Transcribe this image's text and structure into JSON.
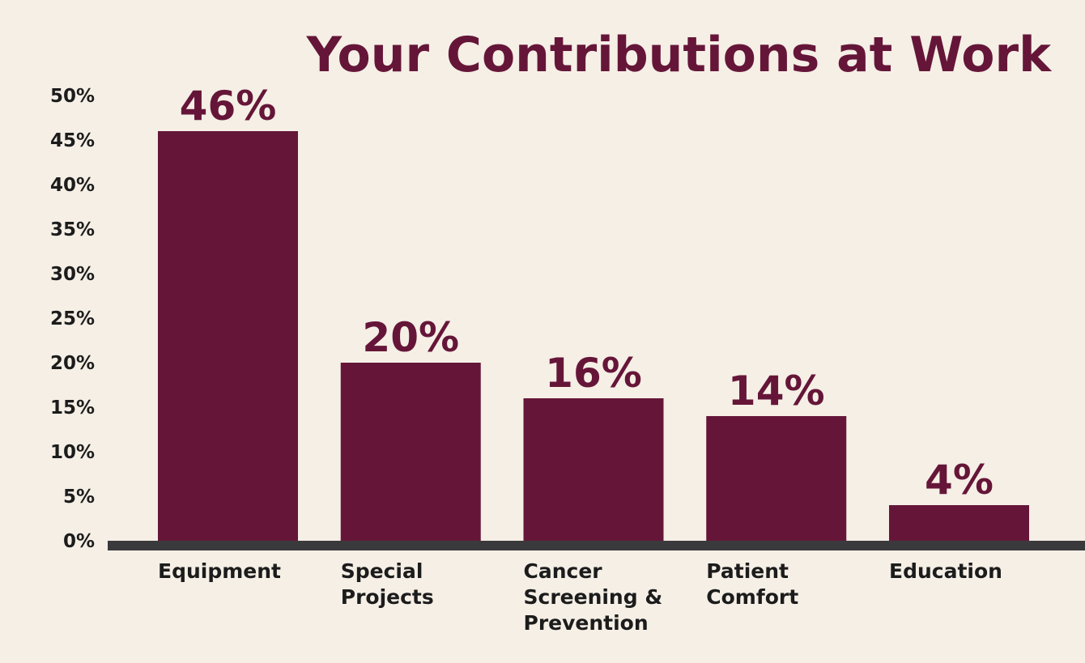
{
  "chart_data": {
    "type": "bar",
    "title": "Your Contributions at Work",
    "categories": [
      "Equipment",
      "Special Projects",
      "Cancer Screening & Prevention",
      "Patient Comfort",
      "Education"
    ],
    "category_lines": [
      [
        "Equipment"
      ],
      [
        "Special",
        "Projects"
      ],
      [
        "Cancer",
        "Screening &",
        "Prevention"
      ],
      [
        "Patient",
        "Comfort"
      ],
      [
        "Education"
      ]
    ],
    "values": [
      46,
      20,
      16,
      14,
      4
    ],
    "data_labels": [
      "46%",
      "20%",
      "16%",
      "14%",
      "4%"
    ],
    "xlabel": "",
    "ylabel": "",
    "ylim": [
      0,
      50
    ],
    "yticks": [
      0,
      5,
      10,
      15,
      20,
      25,
      30,
      35,
      40,
      45,
      50
    ],
    "ytick_labels": [
      "0%",
      "5%",
      "10%",
      "15%",
      "20%",
      "25%",
      "30%",
      "35%",
      "40%",
      "45%",
      "50%"
    ],
    "grid": false,
    "legend": "none",
    "colors": {
      "background": "#f5efe6",
      "bar": "#651638",
      "title": "#651638",
      "text": "#1c1c1c",
      "axis": "#3a3a3c"
    }
  }
}
